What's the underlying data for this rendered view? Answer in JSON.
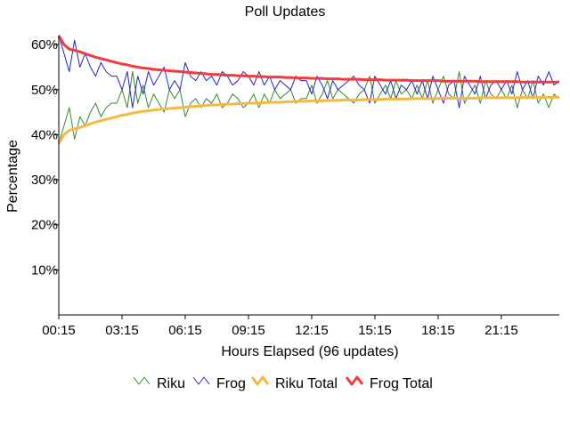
{
  "chart_data": {
    "type": "line",
    "title": "Poll Updates",
    "xlabel": "Hours Elapsed (96 updates)",
    "ylabel": "Percentage",
    "ylim": [
      0,
      62
    ],
    "xlim": [
      0,
      95
    ],
    "grid": false,
    "legend_position": "bottom",
    "x_ticks": [
      {
        "label": "00:15",
        "index": 0
      },
      {
        "label": "03:15",
        "index": 12
      },
      {
        "label": "06:15",
        "index": 24
      },
      {
        "label": "09:15",
        "index": 36
      },
      {
        "label": "12:15",
        "index": 48
      },
      {
        "label": "15:15",
        "index": 60
      },
      {
        "label": "18:15",
        "index": 72
      },
      {
        "label": "21:15",
        "index": 84
      }
    ],
    "y_ticks": [
      {
        "label": "10%",
        "value": 10
      },
      {
        "label": "20%",
        "value": 20
      },
      {
        "label": "30%",
        "value": 30
      },
      {
        "label": "40%",
        "value": 40
      },
      {
        "label": "50%",
        "value": 50
      },
      {
        "label": "60%",
        "value": 60
      }
    ],
    "series": [
      {
        "name": "Riku",
        "color": "#2e8b2e",
        "values": [
          38,
          42,
          46,
          39,
          44,
          42,
          45,
          47,
          44,
          46,
          47,
          47,
          50,
          46,
          54,
          47,
          51,
          46,
          49,
          47,
          45,
          50,
          48,
          50,
          44,
          47,
          48,
          46,
          48,
          47,
          49,
          46,
          47,
          49,
          48,
          46,
          47,
          49,
          46,
          49,
          47,
          50,
          48,
          49,
          50,
          47,
          48,
          48,
          51,
          47,
          49,
          52,
          48,
          50,
          49,
          48,
          47,
          49,
          50,
          53,
          47,
          49,
          51,
          48,
          52,
          49,
          50,
          48,
          51,
          48,
          52,
          47,
          50,
          53,
          49,
          48,
          54,
          47,
          49,
          51,
          47,
          52,
          49,
          48,
          50,
          48,
          51,
          46,
          50,
          48,
          52,
          47,
          49,
          46,
          49,
          48
        ]
      },
      {
        "name": "Frog",
        "color": "#2222cc",
        "values": [
          62,
          58,
          54,
          61,
          55,
          58,
          55,
          53,
          56,
          54,
          53,
          53,
          50,
          54,
          46,
          53,
          49,
          54,
          51,
          53,
          55,
          50,
          52,
          50,
          56,
          53,
          52,
          54,
          52,
          53,
          51,
          54,
          53,
          51,
          52,
          54,
          53,
          51,
          54,
          51,
          53,
          50,
          52,
          51,
          50,
          53,
          52,
          52,
          49,
          53,
          51,
          48,
          52,
          50,
          51,
          52,
          53,
          51,
          50,
          47,
          53,
          51,
          49,
          52,
          48,
          51,
          50,
          52,
          49,
          52,
          48,
          53,
          50,
          47,
          51,
          52,
          46,
          53,
          51,
          49,
          53,
          48,
          51,
          52,
          50,
          52,
          49,
          54,
          50,
          52,
          48,
          53,
          51,
          54,
          51,
          52
        ]
      },
      {
        "name": "Riku Total",
        "color": "#f5b942",
        "values": [
          38.0,
          40.0,
          41.0,
          41.3,
          41.6,
          42.0,
          42.4,
          42.8,
          43.1,
          43.4,
          43.7,
          44.0,
          44.3,
          44.5,
          44.8,
          45.0,
          45.2,
          45.3,
          45.5,
          45.6,
          45.7,
          45.8,
          45.9,
          46.0,
          46.1,
          46.2,
          46.3,
          46.4,
          46.5,
          46.6,
          46.6,
          46.7,
          46.8,
          46.8,
          46.9,
          46.9,
          47.0,
          47.0,
          47.1,
          47.1,
          47.2,
          47.2,
          47.2,
          47.3,
          47.3,
          47.4,
          47.4,
          47.4,
          47.5,
          47.5,
          47.5,
          47.6,
          47.6,
          47.6,
          47.7,
          47.7,
          47.7,
          47.7,
          47.8,
          47.8,
          47.8,
          47.8,
          47.9,
          47.9,
          47.9,
          47.9,
          47.9,
          48.0,
          48.0,
          48.0,
          48.0,
          48.0,
          48.0,
          48.1,
          48.1,
          48.1,
          48.1,
          48.1,
          48.1,
          48.1,
          48.2,
          48.2,
          48.2,
          48.2,
          48.2,
          48.2,
          48.2,
          48.2,
          48.3,
          48.3,
          48.3,
          48.3,
          48.3,
          48.3,
          48.3,
          48.3
        ]
      },
      {
        "name": "Frog Total",
        "color": "#f03c3c",
        "values": [
          62.0,
          60.0,
          59.0,
          58.7,
          58.4,
          58.0,
          57.6,
          57.2,
          56.9,
          56.6,
          56.3,
          56.0,
          55.7,
          55.5,
          55.2,
          55.0,
          54.8,
          54.7,
          54.5,
          54.4,
          54.3,
          54.2,
          54.1,
          54.0,
          53.9,
          53.8,
          53.7,
          53.6,
          53.5,
          53.4,
          53.4,
          53.3,
          53.2,
          53.2,
          53.1,
          53.1,
          53.0,
          53.0,
          52.9,
          52.9,
          52.8,
          52.8,
          52.8,
          52.7,
          52.7,
          52.6,
          52.6,
          52.6,
          52.5,
          52.5,
          52.5,
          52.4,
          52.4,
          52.4,
          52.3,
          52.3,
          52.3,
          52.3,
          52.2,
          52.2,
          52.2,
          52.2,
          52.1,
          52.1,
          52.1,
          52.1,
          52.1,
          52.0,
          52.0,
          52.0,
          52.0,
          52.0,
          52.0,
          51.9,
          51.9,
          51.9,
          51.9,
          51.9,
          51.9,
          51.9,
          51.8,
          51.8,
          51.8,
          51.8,
          51.8,
          51.8,
          51.8,
          51.8,
          51.7,
          51.7,
          51.7,
          51.7,
          51.7,
          51.7,
          51.7,
          51.7
        ]
      }
    ]
  }
}
